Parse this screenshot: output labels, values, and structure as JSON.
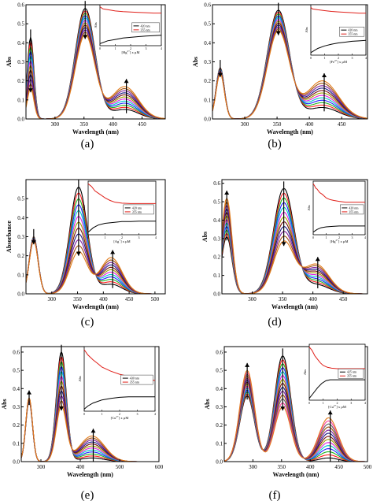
{
  "chart_data": [
    {
      "type": "line",
      "panel": "(a)",
      "xlabel": "Wavelength (nm)",
      "ylabel": "Abs",
      "xlim": [
        250,
        490
      ],
      "ylim": [
        0,
        0.6
      ],
      "xticks": [
        300,
        350,
        400,
        450
      ],
      "yticks": [
        0.0,
        0.1,
        0.2,
        0.3,
        0.4,
        0.5,
        0.6
      ],
      "grid": false,
      "peaks": [
        {
          "center": 258,
          "width": 8,
          "start": 0.43,
          "end": 0.16
        },
        {
          "center": 352,
          "width": 24,
          "start": 0.58,
          "end": 0.44
        },
        {
          "center": 420,
          "width": 33,
          "start": 0.05,
          "end": 0.17
        }
      ],
      "curve_count": 12,
      "inset": {
        "xlabel": "[Hg2+] x µM",
        "ylabel": "Abs",
        "xlim": [
          0,
          4
        ],
        "xticks": [
          0,
          1,
          2,
          3,
          4
        ],
        "legend": [
          "420 nm",
          "355 nm"
        ],
        "series": [
          {
            "name": "420 nm",
            "color": "#000000",
            "x": [
              0,
              0.5,
              1,
              1.5,
              2,
              2.5,
              3,
              3.5,
              4
            ],
            "y": [
              0.05,
              0.09,
              0.11,
              0.13,
              0.14,
              0.15,
              0.16,
              0.165,
              0.17
            ]
          },
          {
            "name": "355 nm",
            "color": "#e0201a",
            "x": [
              0,
              0.2,
              0.5,
              1,
              1.5,
              2,
              2.5,
              3,
              3.5,
              4
            ],
            "y": [
              0.58,
              0.55,
              0.54,
              0.52,
              0.51,
              0.505,
              0.5,
              0.495,
              0.49,
              0.49
            ]
          }
        ]
      }
    },
    {
      "type": "line",
      "panel": "(b)",
      "xlabel": "Wavelength (nm)",
      "ylabel": "Abs",
      "xlim": [
        250,
        490
      ],
      "ylim": [
        0,
        0.6
      ],
      "xticks": [
        300,
        350,
        400,
        450
      ],
      "yticks": [
        0.0,
        0.1,
        0.2,
        0.3,
        0.4,
        0.5,
        0.6
      ],
      "grid": false,
      "peaks": [
        {
          "center": 262,
          "width": 9,
          "start": 0.27,
          "end": 0.24
        },
        {
          "center": 352,
          "width": 24,
          "start": 0.57,
          "end": 0.46
        },
        {
          "center": 420,
          "width": 35,
          "start": 0.06,
          "end": 0.2
        }
      ],
      "curve_count": 12,
      "inset": {
        "xlabel": "[Fe3+] x µM",
        "ylabel": "Abs",
        "xlim": [
          0,
          4
        ],
        "xticks": [
          0,
          1,
          2,
          3,
          4
        ],
        "legend": [
          "420 nm",
          "355 nm"
        ],
        "series": [
          {
            "name": "420 nm",
            "color": "#000000",
            "x": [
              0,
              0.5,
              1,
              1.5,
              2,
              2.5,
              3,
              3.5,
              4
            ],
            "y": [
              0.04,
              0.09,
              0.12,
              0.14,
              0.155,
              0.165,
              0.175,
              0.18,
              0.185
            ]
          },
          {
            "name": "355 nm",
            "color": "#e0201a",
            "x": [
              0,
              0.1,
              0.5,
              1,
              1.5,
              2,
              2.5,
              3,
              3.5,
              4
            ],
            "y": [
              0.58,
              0.56,
              0.55,
              0.54,
              0.53,
              0.525,
              0.52,
              0.515,
              0.51,
              0.51
            ]
          }
        ]
      }
    },
    {
      "type": "line",
      "panel": "(c)",
      "xlabel": "Wavelength (nm)",
      "ylabel": "Absorbance",
      "xlim": [
        250,
        520
      ],
      "ylim": [
        0,
        0.6
      ],
      "xticks": [
        300,
        350,
        400,
        450,
        500
      ],
      "yticks": [
        0.0,
        0.1,
        0.2,
        0.3,
        0.4,
        0.5
      ],
      "grid": false,
      "peaks": [
        {
          "center": 265,
          "width": 12,
          "start": 0.3,
          "end": 0.28
        },
        {
          "center": 352,
          "width": 24,
          "start": 0.56,
          "end": 0.22
        },
        {
          "center": 415,
          "width": 30,
          "start": 0.05,
          "end": 0.19
        }
      ],
      "curve_count": 12,
      "inset": {
        "xlabel": "[Ag+] x µM",
        "ylabel": "Abs",
        "xlim": [
          0,
          4
        ],
        "xticks": [
          0,
          1,
          2,
          3,
          4
        ],
        "legend": [
          "420 nm",
          "355 nm"
        ],
        "series": [
          {
            "name": "420 nm",
            "color": "#000000",
            "x": [
              0,
              0.3,
              0.6,
              1,
              1.5,
              2,
              2.5,
              3,
              3.5,
              4
            ],
            "y": [
              0.03,
              0.08,
              0.11,
              0.13,
              0.14,
              0.15,
              0.15,
              0.155,
              0.155,
              0.155
            ]
          },
          {
            "name": "355 nm",
            "color": "#e0201a",
            "x": [
              0,
              0.2,
              0.4,
              0.7,
              1,
              1.3,
              1.6,
              2,
              2.5,
              3,
              3.5,
              4
            ],
            "y": [
              0.58,
              0.55,
              0.5,
              0.46,
              0.42,
              0.39,
              0.37,
              0.36,
              0.355,
              0.355,
              0.355,
              0.355
            ]
          }
        ]
      }
    },
    {
      "type": "line",
      "panel": "(d)",
      "xlabel": "Wavelength (nm)",
      "ylabel": "Abs",
      "xlim": [
        250,
        490
      ],
      "ylim": [
        0,
        0.62
      ],
      "xticks": [
        300,
        350,
        400,
        450
      ],
      "yticks": [
        0.0,
        0.1,
        0.2,
        0.3,
        0.4,
        0.5,
        0.6
      ],
      "grid": false,
      "peaks": [
        {
          "center": 258,
          "width": 12,
          "start": 0.31,
          "end": 0.52
        },
        {
          "center": 352,
          "width": 24,
          "start": 0.57,
          "end": 0.28
        },
        {
          "center": 405,
          "width": 30,
          "start": 0.05,
          "end": 0.16
        }
      ],
      "curve_count": 12,
      "inset": {
        "xlabel": "[Hg2+] x µM",
        "ylabel": "Abs",
        "xlim": [
          0,
          4
        ],
        "xticks": [
          0,
          1,
          2,
          3,
          4
        ],
        "legend": [
          "420 nm",
          "355 nm"
        ],
        "series": [
          {
            "name": "420 nm",
            "color": "#000000",
            "x": [
              0,
              0.3,
              0.6,
              1,
              1.5,
              2,
              2.5,
              3,
              3.5,
              4
            ],
            "y": [
              0.03,
              0.06,
              0.08,
              0.09,
              0.095,
              0.1,
              0.1,
              0.1,
              0.1,
              0.1
            ]
          },
          {
            "name": "355 nm",
            "color": "#e0201a",
            "x": [
              0,
              0.1,
              0.2,
              0.3,
              0.5,
              0.7,
              1,
              1.3,
              1.6,
              2,
              2.5,
              3,
              3.5,
              4
            ],
            "y": [
              0.58,
              0.56,
              0.53,
              0.52,
              0.48,
              0.46,
              0.42,
              0.4,
              0.39,
              0.38,
              0.37,
              0.37,
              0.37,
              0.37
            ]
          }
        ]
      }
    },
    {
      "type": "line",
      "panel": "(e)",
      "xlabel": "Wavelength (nm)",
      "ylabel": "Abs",
      "xlim": [
        250,
        600
      ],
      "ylim": [
        0,
        0.63
      ],
      "xticks": [
        300,
        400,
        500,
        600
      ],
      "yticks": [
        0.0,
        0.1,
        0.2,
        0.3,
        0.4,
        0.5,
        0.6
      ],
      "grid": false,
      "peaks": [
        {
          "center": 270,
          "width": 12,
          "start": 0.33,
          "end": 0.35
        },
        {
          "center": 352,
          "width": 18,
          "start": 0.6,
          "end": 0.3
        },
        {
          "center": 430,
          "width": 45,
          "start": 0.02,
          "end": 0.14
        }
      ],
      "curve_count": 12,
      "inset": {
        "xlabel": "[Cu2+] x µM",
        "ylabel": "Abs",
        "xlim": [
          0,
          4
        ],
        "xticks": [
          0,
          1,
          2,
          3,
          4
        ],
        "legend": [
          "430 nm",
          "355 nm"
        ],
        "series": [
          {
            "name": "430 nm",
            "color": "#000000",
            "x": [
              0,
              0.2,
              0.5,
              1,
              1.5,
              2,
              2.5,
              3,
              3.5,
              4
            ],
            "y": [
              0.02,
              0.05,
              0.08,
              0.11,
              0.125,
              0.135,
              0.14,
              0.14,
              0.14,
              0.14
            ]
          },
          {
            "name": "355 nm",
            "color": "#e0201a",
            "x": [
              0,
              0.2,
              0.5,
              0.8,
              1,
              1.5,
              2,
              2.5,
              3,
              3.5,
              4
            ],
            "y": [
              0.6,
              0.55,
              0.5,
              0.46,
              0.43,
              0.39,
              0.36,
              0.34,
              0.32,
              0.31,
              0.3
            ]
          }
        ]
      }
    },
    {
      "type": "line",
      "panel": "(f)",
      "xlabel": "Wavelength (nm)",
      "ylabel": "Abs",
      "xlim": [
        250,
        500
      ],
      "ylim": [
        0,
        0.63
      ],
      "xticks": [
        300,
        350,
        400,
        450,
        500
      ],
      "yticks": [
        0.0,
        0.1,
        0.2,
        0.3,
        0.4,
        0.5,
        0.6
      ],
      "grid": false,
      "peaks": [
        {
          "center": 290,
          "width": 18,
          "start": 0.36,
          "end": 0.5
        },
        {
          "center": 352,
          "width": 20,
          "start": 0.58,
          "end": 0.3
        },
        {
          "center": 432,
          "width": 24,
          "start": 0.02,
          "end": 0.24
        }
      ],
      "curve_count": 14,
      "inset": {
        "xlabel": "[Cu2+] x µM",
        "ylabel": "Abs",
        "xlim": [
          0,
          4
        ],
        "xticks": [
          0,
          1,
          2,
          3,
          4
        ],
        "legend": [
          "425 nm",
          "355 nm"
        ],
        "series": [
          {
            "name": "425 nm",
            "color": "#000000",
            "x": [
              0,
              0.3,
              0.6,
              0.9,
              1.2,
              1.5,
              2,
              2.5,
              3,
              3.5,
              4
            ],
            "y": [
              0.02,
              0.08,
              0.14,
              0.19,
              0.22,
              0.23,
              0.23,
              0.23,
              0.23,
              0.23,
              0.23
            ]
          },
          {
            "name": "355 nm",
            "color": "#e0201a",
            "x": [
              0,
              0.2,
              0.4,
              0.6,
              0.8,
              1,
              1.3,
              1.6,
              2,
              2.5,
              3,
              3.5,
              4
            ],
            "y": [
              0.6,
              0.56,
              0.5,
              0.46,
              0.42,
              0.39,
              0.37,
              0.36,
              0.355,
              0.355,
              0.355,
              0.355,
              0.355
            ]
          }
        ]
      }
    }
  ],
  "captions": [
    "(a)",
    "(b)",
    "(c)",
    "(d)",
    "(e)",
    "(f)"
  ],
  "colors": {
    "start_curve": "#000000",
    "end_curve": "#e07a1a",
    "palette": [
      "#ff2020",
      "#1fb41f",
      "#2020ff",
      "#00c8c8",
      "#e020e0",
      "#a0a000",
      "#7a1010",
      "#1a1a80",
      "#8020a0",
      "#a05010",
      "#606060",
      "#ff40a0",
      "#30a060",
      "#6a6ad0"
    ]
  }
}
